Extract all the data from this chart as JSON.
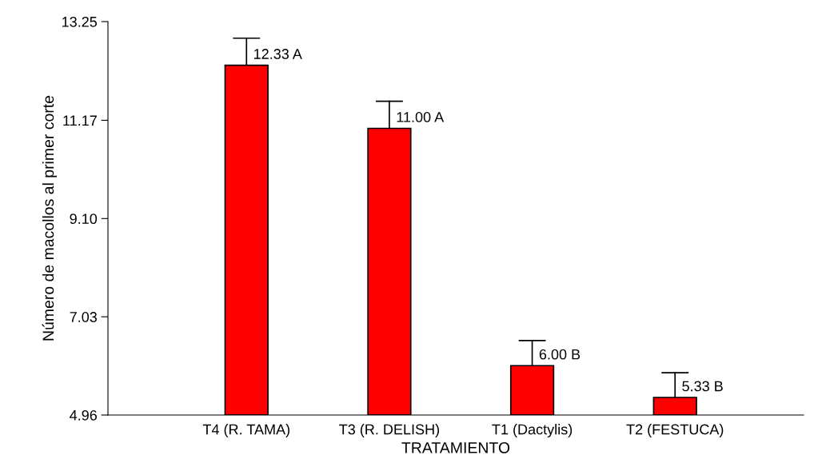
{
  "chart_data": {
    "type": "bar",
    "xlabel": "TRATAMIENTO",
    "ylabel": "Número de macollos al primer corte",
    "categories": [
      "T4 (R. TAMA)",
      "T3 (R. DELISH)",
      "T1 (Dactylis)",
      "T2 (FESTUCA)"
    ],
    "values": [
      12.33,
      11.0,
      6.0,
      5.33
    ],
    "color": "#ff0000",
    "errors": [
      [
        12.33,
        12.9
      ],
      [
        11.0,
        11.57
      ],
      [
        6.0,
        6.53
      ],
      [
        5.33,
        5.85
      ]
    ],
    "value_labels": [
      "12.33 A",
      "11.00 A",
      "6.00 B",
      "5.33 B"
    ],
    "ylim": [
      4.96,
      13.25
    ],
    "yticks": [
      {
        "value": 4.96,
        "label": "4.96"
      },
      {
        "value": 7.03,
        "label": "7.03"
      },
      {
        "value": 9.1,
        "label": "9.10"
      },
      {
        "value": 11.17,
        "label": "11.17"
      },
      {
        "value": 13.25,
        "label": "13.25"
      }
    ],
    "grid": false,
    "legend": false
  }
}
